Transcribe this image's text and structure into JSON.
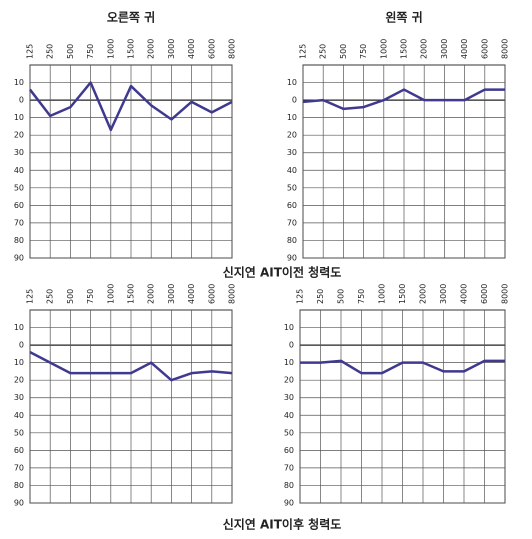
{
  "chart_data": [
    {
      "type": "line",
      "title": "오른쪽 귀",
      "categories": [
        "125",
        "250",
        "500",
        "750",
        "1000",
        "1500",
        "2000",
        "3000",
        "4000",
        "6000",
        "8000"
      ],
      "values": [
        -6,
        9,
        4,
        -10,
        17,
        -8,
        3,
        11,
        1,
        7,
        1
      ],
      "color": "#3f3a8f",
      "ylim": [
        -20,
        90
      ],
      "inverted": true,
      "yticks": [
        {
          "value": -10,
          "label": "10"
        },
        0,
        10,
        20,
        30,
        40,
        50,
        60,
        70,
        80,
        90
      ],
      "grid": true
    },
    {
      "type": "line",
      "title": "왼쪽 귀",
      "categories": [
        "125",
        "250",
        "500",
        "750",
        "1000",
        "1500",
        "2000",
        "3000",
        "4000",
        "6000",
        "8000"
      ],
      "values": [
        1,
        0,
        5,
        4,
        0,
        -6,
        0,
        0,
        0,
        -6,
        -6
      ],
      "color": "#3f3a8f",
      "ylim": [
        -20,
        90
      ],
      "inverted": true,
      "yticks": [
        {
          "value": -10,
          "label": "10"
        },
        0,
        10,
        20,
        30,
        40,
        50,
        60,
        70,
        80,
        90
      ],
      "grid": true
    },
    {
      "type": "line",
      "categories": [
        "125",
        "250",
        "500",
        "750",
        "1000",
        "1500",
        "2000",
        "3000",
        "4000",
        "6000",
        "8000"
      ],
      "values": [
        4,
        10,
        16,
        16,
        16,
        16,
        10,
        20,
        16,
        15,
        16
      ],
      "color": "#3f3a8f",
      "ylim": [
        -20,
        90
      ],
      "inverted": true,
      "yticks": [
        {
          "value": -10,
          "label": "10"
        },
        0,
        10,
        20,
        30,
        40,
        50,
        60,
        70,
        80,
        90
      ],
      "grid": true
    },
    {
      "type": "line",
      "categories": [
        "125",
        "250",
        "500",
        "750",
        "1000",
        "1500",
        "2000",
        "3000",
        "4000",
        "6000",
        "8000"
      ],
      "values": [
        10,
        10,
        9,
        16,
        16,
        10,
        10,
        15,
        15,
        9,
        9
      ],
      "color": "#3f3a8f",
      "ylim": [
        -20,
        90
      ],
      "inverted": true,
      "yticks": [
        {
          "value": -10,
          "label": "10"
        },
        0,
        10,
        20,
        30,
        40,
        50,
        60,
        70,
        80,
        90
      ],
      "grid": true
    }
  ],
  "captions": [
    "신지연 AIT이전 청력도",
    "신지연 AIT이후 청력도"
  ]
}
